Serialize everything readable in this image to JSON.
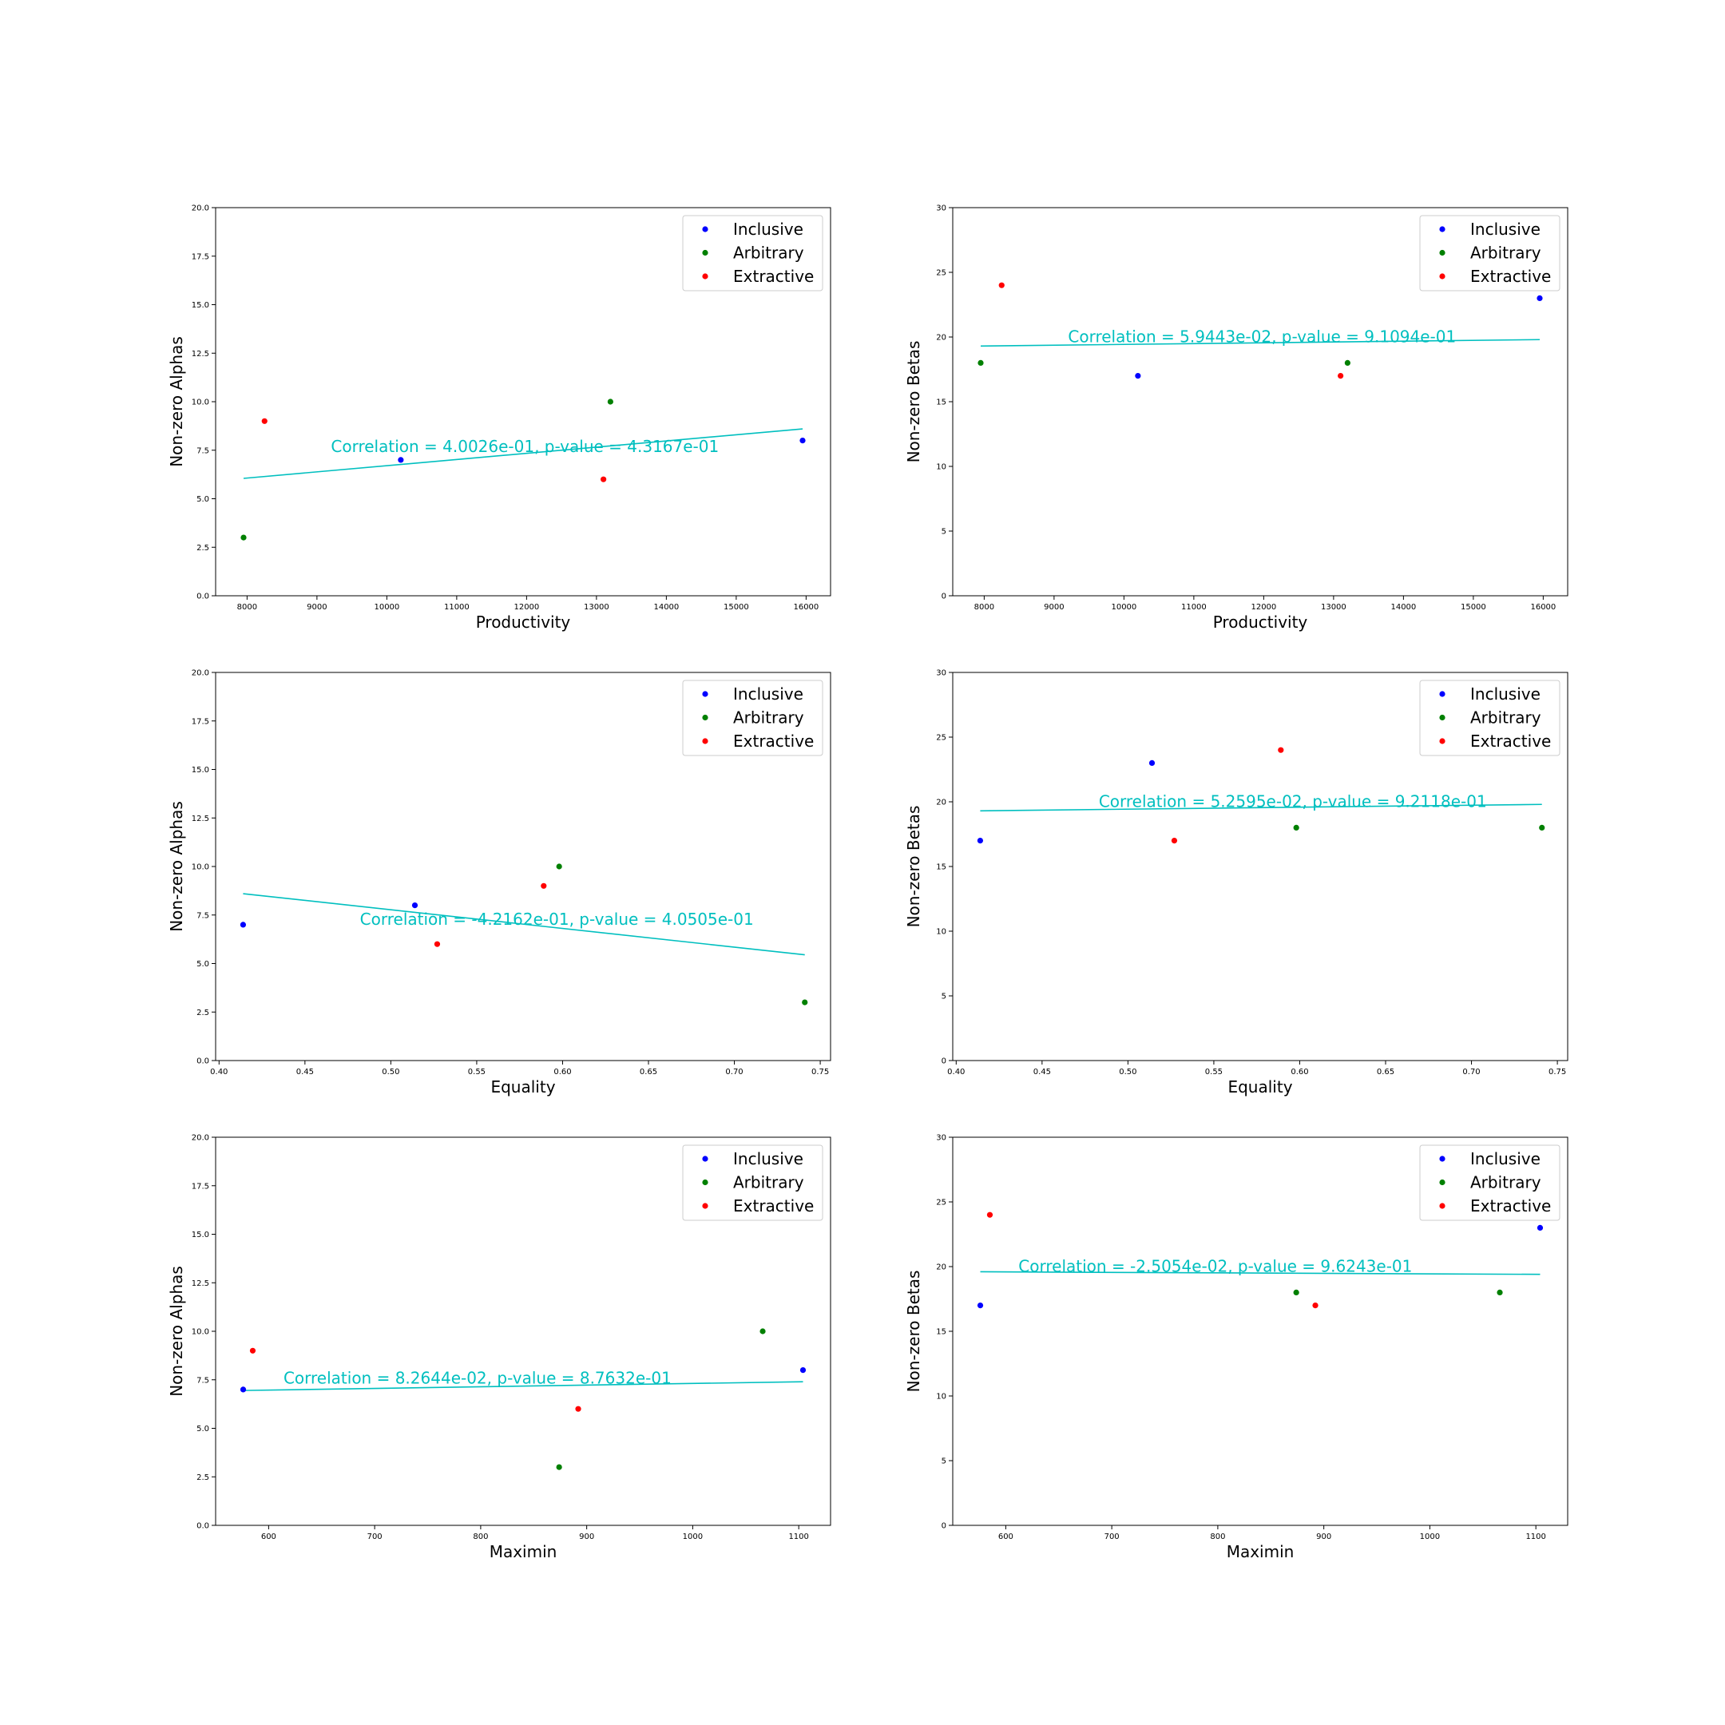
{
  "colors": {
    "Inclusive": "#0000ff",
    "Arbitrary": "#008000",
    "Extractive": "#ff0000",
    "fit": "#00bfbf"
  },
  "legend": [
    "Inclusive",
    "Arbitrary",
    "Extractive"
  ],
  "chart_data": [
    {
      "type": "scatter",
      "xlabel": "Productivity",
      "ylabel": "Non-zero Alphas",
      "xlim": [
        7550,
        16350
      ],
      "ylim": [
        0,
        20
      ],
      "xticks": [
        8000,
        9000,
        10000,
        11000,
        12000,
        13000,
        14000,
        15000,
        16000
      ],
      "xtick_labels": [
        "8000",
        "9000",
        "10000",
        "11000",
        "12000",
        "13000",
        "14000",
        "15000",
        "16000"
      ],
      "yticks": [
        0,
        2.5,
        5,
        7.5,
        10,
        12.5,
        15,
        17.5,
        20
      ],
      "ytick_labels": [
        "0.0",
        "2.5",
        "5.0",
        "7.5",
        "10.0",
        "12.5",
        "15.0",
        "17.5",
        "20.0"
      ],
      "series": [
        {
          "name": "Inclusive",
          "x": [
            10200,
            15950
          ],
          "y": [
            7,
            8
          ]
        },
        {
          "name": "Arbitrary",
          "x": [
            7950,
            13200
          ],
          "y": [
            3,
            10
          ]
        },
        {
          "name": "Extractive",
          "x": [
            8250,
            13100
          ],
          "y": [
            9,
            6
          ]
        }
      ],
      "fit": {
        "x": [
          7950,
          15950
        ],
        "y": [
          6.05,
          8.6
        ]
      },
      "annotation": "Correlation = 4.0026e-01, p-value = 4.3167e-01",
      "annotation_pos": [
        9200,
        7.4
      ],
      "legend_loc": "upper right"
    },
    {
      "type": "scatter",
      "xlabel": "Productivity",
      "ylabel": "Non-zero Betas",
      "xlim": [
        7550,
        16350
      ],
      "ylim": [
        0,
        30
      ],
      "xticks": [
        8000,
        9000,
        10000,
        11000,
        12000,
        13000,
        14000,
        15000,
        16000
      ],
      "xtick_labels": [
        "8000",
        "9000",
        "10000",
        "11000",
        "12000",
        "13000",
        "14000",
        "15000",
        "16000"
      ],
      "yticks": [
        0,
        5,
        10,
        15,
        20,
        25,
        30
      ],
      "ytick_labels": [
        "0",
        "5",
        "10",
        "15",
        "20",
        "25",
        "30"
      ],
      "series": [
        {
          "name": "Inclusive",
          "x": [
            10200,
            15950
          ],
          "y": [
            17,
            23
          ]
        },
        {
          "name": "Arbitrary",
          "x": [
            7950,
            13200
          ],
          "y": [
            18,
            18
          ]
        },
        {
          "name": "Extractive",
          "x": [
            8250,
            13100
          ],
          "y": [
            24,
            17
          ]
        }
      ],
      "fit": {
        "x": [
          7950,
          15950
        ],
        "y": [
          19.3,
          19.8
        ]
      },
      "annotation": "Correlation = 5.9443e-02, p-value = 9.1094e-01",
      "annotation_pos": [
        9200,
        19.6
      ],
      "legend_loc": "upper right"
    },
    {
      "type": "scatter",
      "xlabel": "Equality",
      "ylabel": "Non-zero Alphas",
      "xlim": [
        0.398,
        0.756
      ],
      "ylim": [
        0,
        20
      ],
      "xticks": [
        0.4,
        0.45,
        0.5,
        0.55,
        0.6,
        0.65,
        0.7,
        0.75
      ],
      "xtick_labels": [
        "0.40",
        "0.45",
        "0.50",
        "0.55",
        "0.60",
        "0.65",
        "0.70",
        "0.75"
      ],
      "yticks": [
        0,
        2.5,
        5,
        7.5,
        10,
        12.5,
        15,
        17.5,
        20
      ],
      "ytick_labels": [
        "0.0",
        "2.5",
        "5.0",
        "7.5",
        "10.0",
        "12.5",
        "15.0",
        "17.5",
        "20.0"
      ],
      "series": [
        {
          "name": "Inclusive",
          "x": [
            0.414,
            0.514
          ],
          "y": [
            7,
            8
          ]
        },
        {
          "name": "Arbitrary",
          "x": [
            0.598,
            0.741
          ],
          "y": [
            10,
            3
          ]
        },
        {
          "name": "Extractive",
          "x": [
            0.527,
            0.589
          ],
          "y": [
            6,
            9
          ]
        }
      ],
      "fit": {
        "x": [
          0.414,
          0.741
        ],
        "y": [
          8.6,
          5.45
        ]
      },
      "annotation": "Correlation = -4.2162e-01, p-value = 4.0505e-01",
      "annotation_pos": [
        0.482,
        7.0
      ],
      "legend_loc": "upper right"
    },
    {
      "type": "scatter",
      "xlabel": "Equality",
      "ylabel": "Non-zero Betas",
      "xlim": [
        0.398,
        0.756
      ],
      "ylim": [
        0,
        30
      ],
      "xticks": [
        0.4,
        0.45,
        0.5,
        0.55,
        0.6,
        0.65,
        0.7,
        0.75
      ],
      "xtick_labels": [
        "0.40",
        "0.45",
        "0.50",
        "0.55",
        "0.60",
        "0.65",
        "0.70",
        "0.75"
      ],
      "yticks": [
        0,
        5,
        10,
        15,
        20,
        25,
        30
      ],
      "ytick_labels": [
        "0",
        "5",
        "10",
        "15",
        "20",
        "25",
        "30"
      ],
      "series": [
        {
          "name": "Inclusive",
          "x": [
            0.414,
            0.514
          ],
          "y": [
            17,
            23
          ]
        },
        {
          "name": "Arbitrary",
          "x": [
            0.598,
            0.741
          ],
          "y": [
            18,
            18
          ]
        },
        {
          "name": "Extractive",
          "x": [
            0.527,
            0.589
          ],
          "y": [
            17,
            24
          ]
        }
      ],
      "fit": {
        "x": [
          0.414,
          0.741
        ],
        "y": [
          19.3,
          19.8
        ]
      },
      "annotation": "Correlation = 5.2595e-02, p-value = 9.2118e-01",
      "annotation_pos": [
        0.483,
        19.6
      ],
      "legend_loc": "upper right"
    },
    {
      "type": "scatter",
      "xlabel": "Maximin",
      "ylabel": "Non-zero Alphas",
      "xlim": [
        550,
        1130
      ],
      "ylim": [
        0,
        20
      ],
      "xticks": [
        600,
        700,
        800,
        900,
        1000,
        1100
      ],
      "xtick_labels": [
        "600",
        "700",
        "800",
        "900",
        "1000",
        "1100"
      ],
      "yticks": [
        0,
        2.5,
        5,
        7.5,
        10,
        12.5,
        15,
        17.5,
        20
      ],
      "ytick_labels": [
        "0.0",
        "2.5",
        "5.0",
        "7.5",
        "10.0",
        "12.5",
        "15.0",
        "17.5",
        "20.0"
      ],
      "series": [
        {
          "name": "Inclusive",
          "x": [
            576,
            1104
          ],
          "y": [
            7,
            8
          ]
        },
        {
          "name": "Arbitrary",
          "x": [
            874,
            1066
          ],
          "y": [
            3,
            10
          ]
        },
        {
          "name": "Extractive",
          "x": [
            585,
            892
          ],
          "y": [
            9,
            6
          ]
        }
      ],
      "fit": {
        "x": [
          576,
          1104
        ],
        "y": [
          6.95,
          7.4
        ]
      },
      "annotation": "Correlation = 8.2644e-02, p-value = 8.7632e-01",
      "annotation_pos": [
        614,
        7.3
      ],
      "legend_loc": "upper right"
    },
    {
      "type": "scatter",
      "xlabel": "Maximin",
      "ylabel": "Non-zero Betas",
      "xlim": [
        550,
        1130
      ],
      "ylim": [
        0,
        30
      ],
      "xticks": [
        600,
        700,
        800,
        900,
        1000,
        1100
      ],
      "xtick_labels": [
        "600",
        "700",
        "800",
        "900",
        "1000",
        "1100"
      ],
      "yticks": [
        0,
        5,
        10,
        15,
        20,
        25,
        30
      ],
      "ytick_labels": [
        "0",
        "5",
        "10",
        "15",
        "20",
        "25",
        "30"
      ],
      "series": [
        {
          "name": "Inclusive",
          "x": [
            576,
            1104
          ],
          "y": [
            17,
            23
          ]
        },
        {
          "name": "Arbitrary",
          "x": [
            874,
            1066
          ],
          "y": [
            18,
            18
          ]
        },
        {
          "name": "Extractive",
          "x": [
            585,
            892
          ],
          "y": [
            24,
            17
          ]
        }
      ],
      "fit": {
        "x": [
          576,
          1104
        ],
        "y": [
          19.6,
          19.4
        ]
      },
      "annotation": "Correlation = -2.5054e-02, p-value = 9.6243e-01",
      "annotation_pos": [
        612,
        19.6
      ],
      "legend_loc": "upper right"
    }
  ]
}
